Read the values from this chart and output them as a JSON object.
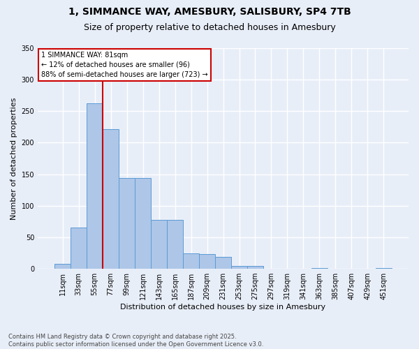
{
  "title_line1": "1, SIMMANCE WAY, AMESBURY, SALISBURY, SP4 7TB",
  "title_line2": "Size of property relative to detached houses in Amesbury",
  "xlabel": "Distribution of detached houses by size in Amesbury",
  "ylabel": "Number of detached properties",
  "bar_labels": [
    "11sqm",
    "33sqm",
    "55sqm",
    "77sqm",
    "99sqm",
    "121sqm",
    "143sqm",
    "165sqm",
    "187sqm",
    "209sqm",
    "231sqm",
    "253sqm",
    "275sqm",
    "297sqm",
    "319sqm",
    "341sqm",
    "363sqm",
    "385sqm",
    "407sqm",
    "429sqm",
    "451sqm"
  ],
  "bar_values": [
    8,
    65,
    263,
    222,
    144,
    144,
    78,
    78,
    24,
    23,
    19,
    5,
    5,
    0,
    0,
    0,
    1,
    0,
    0,
    0,
    1
  ],
  "bar_color": "#aec6e8",
  "bar_edge_color": "#5b9bd5",
  "background_color": "#e8eef8",
  "grid_color": "#ffffff",
  "vline_color": "#cc0000",
  "vline_x": 2.5,
  "annotation_text": "1 SIMMANCE WAY: 81sqm\n← 12% of detached houses are smaller (96)\n88% of semi-detached houses are larger (723) →",
  "annotation_box_color": "#ffffff",
  "annotation_box_edge": "#cc0000",
  "footer_line1": "Contains HM Land Registry data © Crown copyright and database right 2025.",
  "footer_line2": "Contains public sector information licensed under the Open Government Licence v3.0.",
  "ylim": [
    0,
    350
  ],
  "yticks": [
    0,
    50,
    100,
    150,
    200,
    250,
    300,
    350
  ],
  "title_fontsize": 10,
  "subtitle_fontsize": 9,
  "ylabel_fontsize": 8,
  "xlabel_fontsize": 8,
  "tick_fontsize": 7,
  "annotation_fontsize": 7,
  "footer_fontsize": 6
}
